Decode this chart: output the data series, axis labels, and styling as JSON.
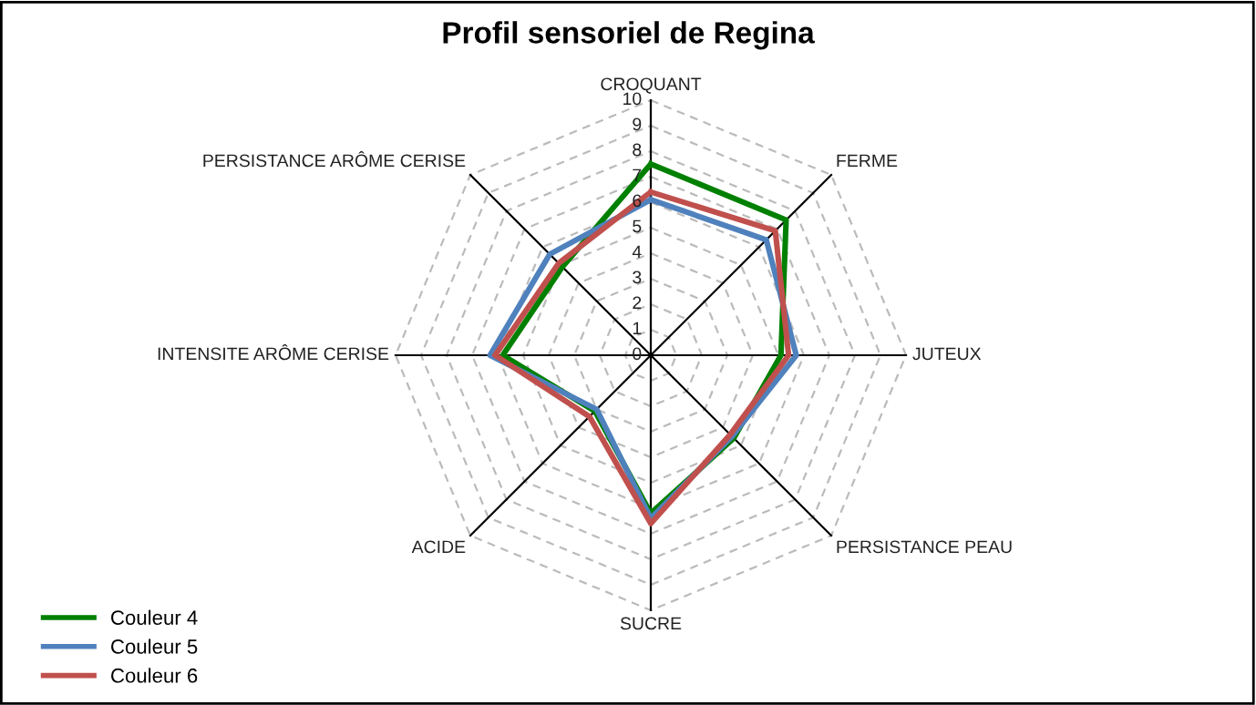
{
  "chart_data": {
    "type": "radar",
    "title": "Profil sensoriel de Regina",
    "categories": [
      "CROQUANT",
      "FERME",
      "JUTEUX",
      "PERSISTANCE PEAU",
      "SUCRE",
      "ACIDE",
      "INTENSITE ARÔME CERISE",
      "PERSISTANCE ARÔME CERISE"
    ],
    "series": [
      {
        "name": "Couleur 4",
        "color": "#008000",
        "values": [
          7.5,
          7.5,
          5.1,
          4.6,
          6.2,
          3.1,
          5.8,
          4.9
        ]
      },
      {
        "name": "Couleur 5",
        "color": "#4f81bd",
        "values": [
          6.1,
          6.4,
          5.7,
          4.5,
          6.4,
          3.0,
          6.3,
          5.6
        ]
      },
      {
        "name": "Couleur 6",
        "color": "#c0504d",
        "values": [
          6.4,
          6.9,
          5.4,
          4.4,
          6.6,
          3.4,
          6.1,
          5.1
        ]
      }
    ],
    "ylim": [
      0,
      10
    ],
    "yticks": [
      0,
      1,
      2,
      3,
      4,
      5,
      6,
      7,
      8,
      9,
      10
    ],
    "grid": true,
    "legend": "bottom left",
    "line_style": "solid",
    "marker": "none"
  }
}
